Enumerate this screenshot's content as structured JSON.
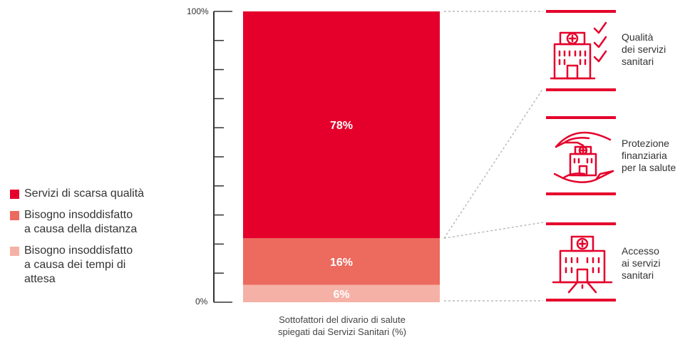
{
  "chart_data": {
    "type": "bar",
    "stacked": true,
    "categories": [
      "Sottofattori del divario di salute spiegati dai Servizi Sanitari (%)"
    ],
    "series": [
      {
        "name": "Servizi di scarsa qualità",
        "values": [
          78
        ],
        "color": "#E4002B",
        "label": "78%"
      },
      {
        "name": "Bisogno insoddisfatto a causa della distanza",
        "values": [
          16
        ],
        "color": "#EC6A5E",
        "label": "16%"
      },
      {
        "name": "Bisogno insoddisfatto a causa dei tempi di attesa",
        "values": [
          6
        ],
        "color": "#F5B1A6",
        "label": "6%"
      }
    ],
    "ylim": [
      0,
      100
    ],
    "yticks": [
      "0%",
      "100%"
    ],
    "xlabel_lines": [
      "Sottofattori del divario di salute",
      "spiegati dai Servizi Sanitari (%)"
    ]
  },
  "legend": [
    {
      "lines": [
        "Servizi di scarsa qualità"
      ],
      "color": "#E4002B"
    },
    {
      "lines": [
        "Bisogno insoddisfatto",
        "a causa della distanza"
      ],
      "color": "#EC6A5E"
    },
    {
      "lines": [
        "Bisogno insoddisfatto",
        "a causa dei tempi di",
        "attesa"
      ],
      "color": "#F5B1A6"
    }
  ],
  "breakdown": [
    {
      "lines": [
        "Qualità",
        "dei servizi",
        "sanitari"
      ],
      "icon": "hospital-checklist-icon"
    },
    {
      "lines": [
        "Protezione",
        "finanziaria",
        "per la salute"
      ],
      "icon": "hands-protecting-hospital-icon"
    },
    {
      "lines": [
        "Accesso",
        "ai servizi",
        "sanitari"
      ],
      "icon": "hospital-road-icon"
    }
  ],
  "colors": {
    "accent": "#E4002B",
    "axis": "#333333",
    "connector": "#BBBBBB"
  }
}
